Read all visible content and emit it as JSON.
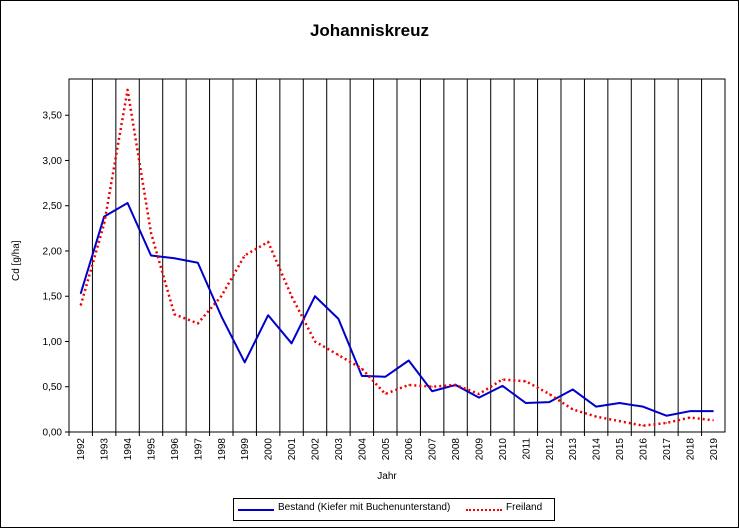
{
  "chart_data": {
    "type": "line",
    "title": "Johanniskreuz",
    "xlabel": "Jahr",
    "ylabel": "Cd [g/ha]",
    "ylim": [
      0,
      3.9
    ],
    "yticks": [
      "0,00",
      "0,50",
      "1,00",
      "1,50",
      "2,00",
      "2,50",
      "3,00",
      "3,50"
    ],
    "ytick_values": [
      0,
      0.5,
      1.0,
      1.5,
      2.0,
      2.5,
      3.0,
      3.5
    ],
    "grid": "vertical",
    "legend_position": "bottom",
    "categories": [
      "1992",
      "1993",
      "1994",
      "1995",
      "1996",
      "1997",
      "1998",
      "1999",
      "2000",
      "2001",
      "2002",
      "2003",
      "2004",
      "2005",
      "2006",
      "2007",
      "2008",
      "2009",
      "2010",
      "2011",
      "2012",
      "2013",
      "2014",
      "2015",
      "2016",
      "2017",
      "2018",
      "2019"
    ],
    "series": [
      {
        "name": "Bestand (Kiefer mit Buchenunterstand)",
        "color": "#0000cc",
        "style": "solid",
        "values": [
          1.53,
          2.38,
          2.53,
          1.95,
          1.92,
          1.87,
          1.28,
          0.77,
          1.29,
          0.98,
          1.5,
          1.25,
          0.62,
          0.61,
          0.79,
          0.45,
          0.52,
          0.38,
          0.51,
          0.32,
          0.33,
          0.47,
          0.28,
          0.32,
          0.28,
          0.18,
          0.23,
          0.23
        ]
      },
      {
        "name": "Freiland",
        "color": "#ee0000",
        "style": "dotted",
        "values": [
          1.4,
          2.3,
          3.78,
          2.2,
          1.3,
          1.2,
          1.5,
          1.95,
          2.1,
          1.5,
          1.0,
          0.85,
          0.7,
          0.42,
          0.52,
          0.5,
          0.52,
          0.42,
          0.58,
          0.56,
          0.42,
          0.25,
          0.17,
          0.12,
          0.07,
          0.1,
          0.16,
          0.13
        ]
      }
    ]
  }
}
